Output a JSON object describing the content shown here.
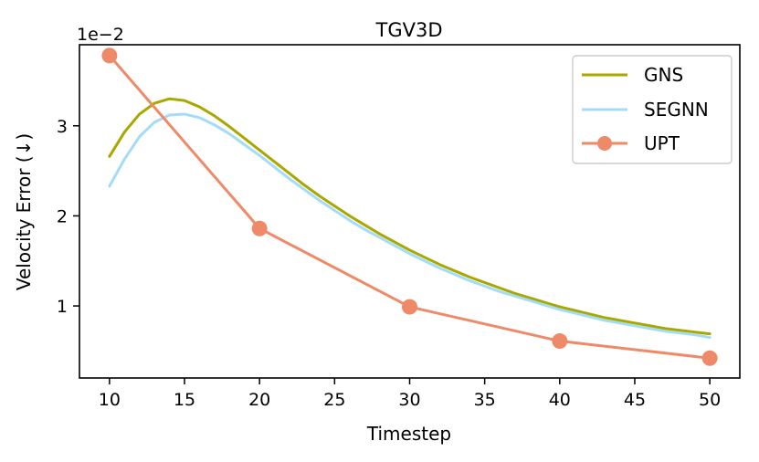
{
  "chart_data": {
    "type": "line",
    "title": "TGV3D",
    "xlabel": "Timestep",
    "ylabel": "Velocity Error (↓)",
    "y_scale_label": "1e−2",
    "xlim": [
      8,
      52
    ],
    "ylim": [
      0.2,
      3.9
    ],
    "xticks": [
      10,
      15,
      20,
      25,
      30,
      35,
      40,
      45,
      50
    ],
    "yticks": [
      1,
      2,
      3
    ],
    "legend_position": "top-right",
    "series": [
      {
        "name": "GNS",
        "color": "#a8a800",
        "marker": "none",
        "x": [
          10,
          11,
          12,
          13,
          14,
          15,
          16,
          17,
          18,
          19,
          20,
          21,
          22,
          23,
          24,
          25,
          26,
          27,
          28,
          29,
          30,
          31,
          32,
          33,
          34,
          35,
          36,
          37,
          38,
          39,
          40,
          41,
          42,
          43,
          44,
          45,
          46,
          47,
          48,
          49,
          50
        ],
        "values": [
          2.66,
          2.93,
          3.13,
          3.25,
          3.3,
          3.28,
          3.21,
          3.11,
          2.99,
          2.86,
          2.73,
          2.6,
          2.47,
          2.34,
          2.22,
          2.11,
          2.0,
          1.9,
          1.8,
          1.71,
          1.62,
          1.54,
          1.46,
          1.39,
          1.32,
          1.26,
          1.2,
          1.14,
          1.09,
          1.04,
          0.99,
          0.95,
          0.91,
          0.87,
          0.84,
          0.81,
          0.78,
          0.75,
          0.73,
          0.71,
          0.69
        ]
      },
      {
        "name": "SEGNN",
        "color": "#a4dcf8",
        "marker": "none",
        "x": [
          10,
          11,
          12,
          13,
          14,
          15,
          16,
          17,
          18,
          19,
          20,
          21,
          22,
          23,
          24,
          25,
          26,
          27,
          28,
          29,
          30,
          31,
          32,
          33,
          34,
          35,
          36,
          37,
          38,
          39,
          40,
          41,
          42,
          43,
          44,
          45,
          46,
          47,
          48,
          49,
          50
        ],
        "values": [
          2.33,
          2.63,
          2.88,
          3.04,
          3.12,
          3.13,
          3.09,
          3.01,
          2.91,
          2.79,
          2.67,
          2.54,
          2.41,
          2.29,
          2.17,
          2.06,
          1.95,
          1.85,
          1.76,
          1.67,
          1.58,
          1.5,
          1.42,
          1.35,
          1.28,
          1.22,
          1.16,
          1.11,
          1.06,
          1.01,
          0.96,
          0.92,
          0.88,
          0.84,
          0.81,
          0.78,
          0.75,
          0.72,
          0.7,
          0.68,
          0.65
        ]
      },
      {
        "name": "UPT",
        "color": "#ef8a68",
        "marker": "circle",
        "x": [
          10,
          20,
          30,
          40,
          50
        ],
        "values": [
          3.78,
          1.86,
          0.99,
          0.61,
          0.42
        ]
      }
    ]
  }
}
